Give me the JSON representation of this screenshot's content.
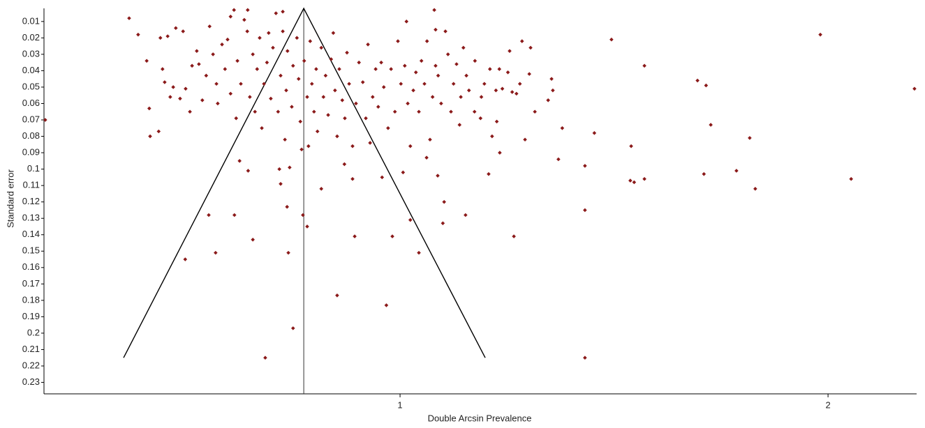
{
  "chart_data": {
    "type": "scatter",
    "x_label": "Double Arcsin Prevalence",
    "y_label": "Standard error",
    "color": "#8b1a1a",
    "xlim": [
      0.168,
      2.207
    ],
    "ylim": [
      0.002,
      0.237
    ],
    "y_inverted": true,
    "xticks": [
      1,
      2
    ],
    "yticks": [
      0.01,
      0.02,
      0.03,
      0.04,
      0.05,
      0.06,
      0.07,
      0.08,
      0.09,
      0.1,
      0.11,
      0.12,
      0.13,
      0.14,
      0.15,
      0.16,
      0.17,
      0.18,
      0.19,
      0.2,
      0.21,
      0.22,
      0.23
    ],
    "pooled_estimate": 0.775,
    "funnel": {
      "x": [
        0.354,
        0.775,
        1.199
      ],
      "y": [
        0.215,
        0.002,
        0.215
      ]
    },
    "x": [
      0.171,
      2.202,
      1.982,
      2.054,
      1.83,
      1.817,
      1.786,
      1.71,
      1.726,
      1.715,
      1.695,
      1.571,
      1.494,
      1.54,
      1.538,
      1.547,
      1.571,
      1.432,
      1.432,
      1.432,
      1.454,
      1.379,
      1.37,
      1.357,
      1.354,
      1.346,
      1.315,
      1.305,
      1.302,
      1.266,
      1.207,
      1.215,
      1.233,
      1.256,
      1.292,
      1.153,
      1.103,
      1.1,
      1.139,
      1.188,
      1.224,
      1.232,
      1.272,
      1.175,
      1.044,
      1.024,
      0.982,
      0.968,
      0.853,
      0.894,
      0.75,
      0.685,
      0.498,
      0.569,
      0.739,
      0.656,
      0.553,
      0.613,
      0.736,
      0.773,
      0.783,
      0.816,
      0.721,
      0.625,
      0.645,
      0.718,
      0.889,
      0.87,
      0.958,
      1.007,
      1.088,
      1.062,
      0.416,
      0.436,
      0.414,
      0.367,
      0.388,
      0.408,
      0.44,
      0.457,
      0.476,
      0.493,
      0.445,
      0.45,
      0.463,
      0.47,
      0.486,
      0.499,
      0.509,
      0.514,
      0.525,
      0.53,
      0.538,
      0.547,
      0.555,
      0.563,
      0.571,
      0.574,
      0.584,
      0.591,
      0.597,
      0.604,
      0.612,
      0.617,
      0.62,
      0.628,
      0.636,
      0.643,
      0.649,
      0.656,
      0.661,
      0.666,
      0.672,
      0.677,
      0.682,
      0.689,
      0.693,
      0.698,
      0.703,
      0.71,
      0.715,
      0.721,
      0.726,
      0.731,
      0.734,
      0.737,
      0.742,
      0.747,
      0.75,
      0.759,
      0.763,
      0.767,
      0.77,
      0.776,
      0.783,
      0.786,
      0.79,
      0.794,
      0.799,
      0.804,
      0.807,
      0.816,
      0.821,
      0.826,
      0.832,
      0.839,
      0.844,
      0.848,
      0.853,
      0.858,
      0.865,
      0.871,
      0.876,
      0.881,
      0.889,
      0.897,
      0.904,
      0.913,
      0.92,
      0.925,
      0.93,
      0.936,
      0.943,
      0.949,
      0.956,
      0.962,
      0.972,
      0.979,
      0.988,
      0.995,
      1.002,
      1.011,
      1.018,
      1.024,
      1.031,
      1.037,
      1.044,
      1.05,
      1.057,
      1.063,
      1.07,
      1.076,
      1.08,
      1.083,
      1.089,
      1.096,
      1.106,
      1.112,
      1.119,
      1.125,
      1.132,
      1.142,
      1.148,
      1.155,
      1.161,
      1.174,
      1.19,
      1.197,
      1.21,
      1.226,
      1.239,
      1.252,
      1.262,
      1.28,
      1.285,
      1.015,
      1.083,
      0.726,
      0.644,
      0.604
    ],
    "values": [
      0.07,
      0.051,
      0.018,
      0.106,
      0.112,
      0.081,
      0.101,
      0.103,
      0.073,
      0.049,
      0.046,
      0.037,
      0.021,
      0.086,
      0.107,
      0.108,
      0.106,
      0.215,
      0.125,
      0.098,
      0.078,
      0.075,
      0.094,
      0.052,
      0.045,
      0.058,
      0.065,
      0.026,
      0.042,
      0.141,
      0.103,
      0.08,
      0.09,
      0.028,
      0.082,
      0.128,
      0.12,
      0.133,
      0.073,
      0.069,
      0.052,
      0.039,
      0.054,
      0.034,
      0.151,
      0.131,
      0.141,
      0.183,
      0.177,
      0.141,
      0.197,
      0.215,
      0.155,
      0.151,
      0.151,
      0.143,
      0.128,
      0.128,
      0.123,
      0.128,
      0.135,
      0.112,
      0.109,
      0.095,
      0.101,
      0.1,
      0.106,
      0.097,
      0.105,
      0.102,
      0.104,
      0.093,
      0.08,
      0.077,
      0.063,
      0.008,
      0.018,
      0.034,
      0.02,
      0.019,
      0.014,
      0.016,
      0.039,
      0.047,
      0.056,
      0.05,
      0.057,
      0.051,
      0.065,
      0.037,
      0.028,
      0.036,
      0.058,
      0.043,
      0.013,
      0.03,
      0.048,
      0.06,
      0.024,
      0.039,
      0.021,
      0.054,
      0.003,
      0.069,
      0.034,
      0.048,
      0.009,
      0.016,
      0.056,
      0.03,
      0.065,
      0.039,
      0.02,
      0.075,
      0.048,
      0.035,
      0.017,
      0.057,
      0.026,
      0.005,
      0.065,
      0.043,
      0.016,
      0.082,
      0.052,
      0.028,
      0.099,
      0.062,
      0.037,
      0.02,
      0.045,
      0.071,
      0.088,
      0.034,
      0.056,
      0.086,
      0.022,
      0.048,
      0.065,
      0.039,
      0.077,
      0.026,
      0.056,
      0.043,
      0.067,
      0.033,
      0.017,
      0.052,
      0.08,
      0.039,
      0.058,
      0.069,
      0.029,
      0.048,
      0.086,
      0.06,
      0.035,
      0.047,
      0.069,
      0.024,
      0.084,
      0.056,
      0.039,
      0.062,
      0.035,
      0.05,
      0.075,
      0.039,
      0.065,
      0.022,
      0.048,
      0.037,
      0.06,
      0.086,
      0.052,
      0.041,
      0.065,
      0.034,
      0.048,
      0.022,
      0.082,
      0.056,
      0.003,
      0.037,
      0.043,
      0.06,
      0.016,
      0.03,
      0.065,
      0.048,
      0.036,
      0.056,
      0.026,
      0.043,
      0.052,
      0.065,
      0.056,
      0.048,
      0.039,
      0.071,
      0.051,
      0.041,
      0.053,
      0.048,
      0.022,
      0.01,
      0.015,
      0.004,
      0.003,
      0.007
    ]
  }
}
